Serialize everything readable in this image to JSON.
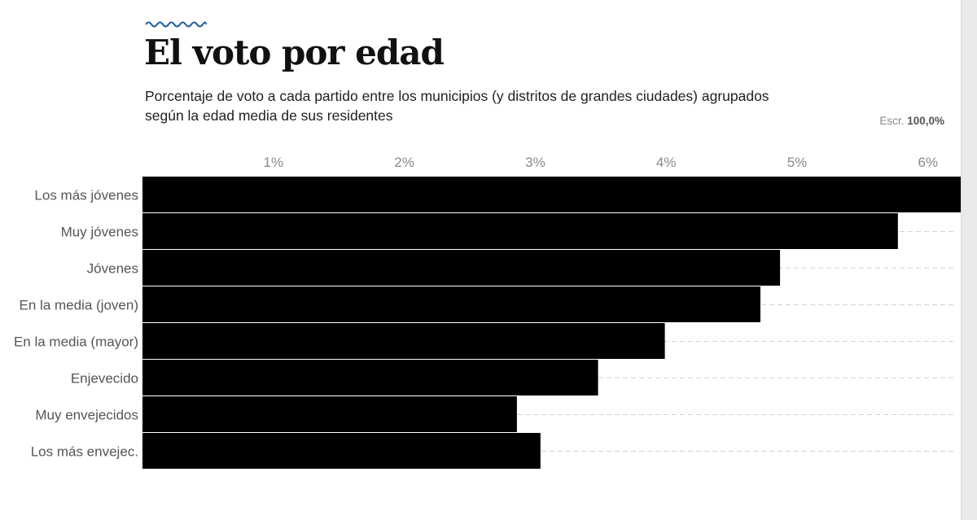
{
  "header": {
    "title": "El voto por edad",
    "subtitle": "Porcentaje de voto a cada partido entre los municipios (y distritos de grandes ciudades) agrupados según la edad media de sus residentes",
    "escrutinio_label": "Escr.",
    "escrutinio_value": "100,0%"
  },
  "colors": {
    "bar": "#000000",
    "wave_accent": "#1f5f9f",
    "tick_text": "#8a8a8a",
    "category_text": "#555555",
    "gridline": "#d4d4d4"
  },
  "chart_data": {
    "type": "bar",
    "orientation": "horizontal",
    "title": "El voto por edad",
    "categories": [
      "Los más jóvenes",
      "Muy jóvenes",
      "Jóvenes",
      "En la media (joven)",
      "En la media (mayor)",
      "Enjevecido",
      "Muy envejecidos",
      "Los más envejec."
    ],
    "values": [
      6.25,
      5.77,
      4.87,
      4.72,
      3.99,
      3.48,
      2.86,
      3.04
    ],
    "value_unit": "%",
    "xlim": [
      0,
      6.25
    ],
    "xticks": [
      1,
      2,
      3,
      4,
      5,
      6
    ],
    "xtick_labels": [
      "1%",
      "2%",
      "3%",
      "4%",
      "5%",
      "6%"
    ],
    "grid": "dashed row guides",
    "legend": "none"
  }
}
